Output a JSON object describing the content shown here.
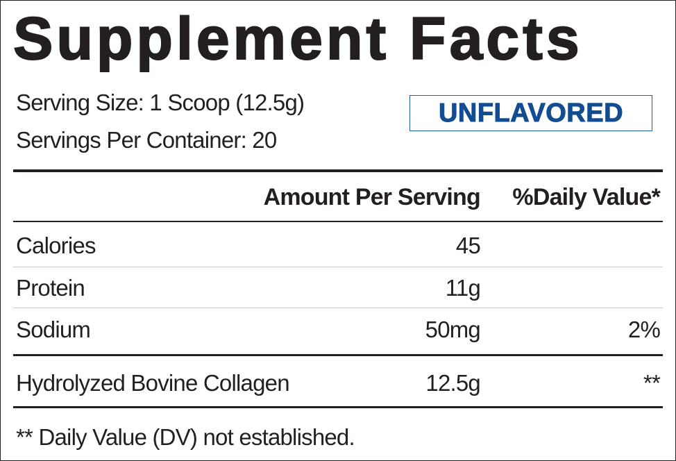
{
  "title": "Supplement Facts",
  "serving_size": "Serving Size: 1 Scoop (12.5g)",
  "servings_per_container": "Servings Per Container: 20",
  "flavor": "UNFLAVORED",
  "table": {
    "header": {
      "amount": "Amount Per Serving",
      "daily_value": "%Daily Value*"
    },
    "rows": [
      {
        "name": "Calories",
        "amount": "45"
      },
      {
        "name": "Protein",
        "amount": "11g"
      },
      {
        "name": "Sodium",
        "amount": "50mg",
        "daily_value": "2%"
      },
      {
        "name": "Hydrolyzed Bovine Collagen",
        "amount": "12.5g",
        "daily_value": "**"
      }
    ]
  },
  "footnote": "** Daily Value (DV) not established."
}
